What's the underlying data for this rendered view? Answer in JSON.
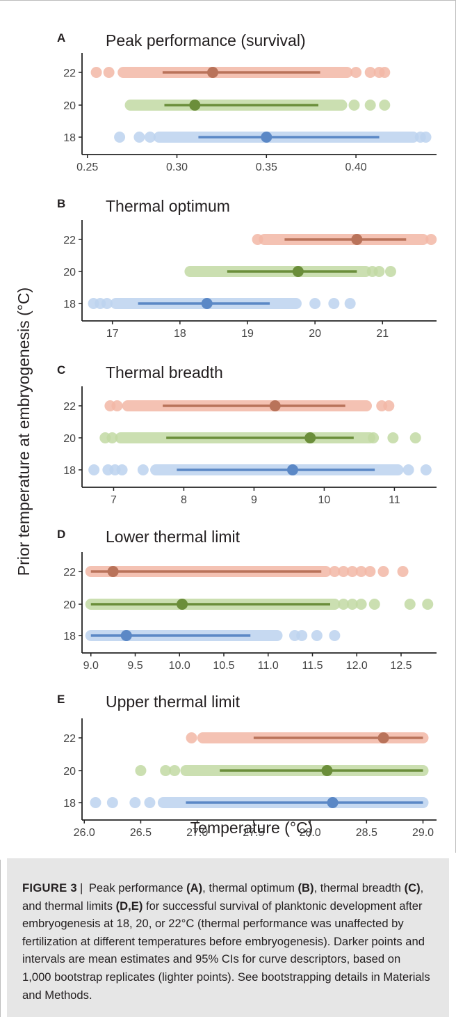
{
  "figure": {
    "ylabel": "Prior temperature at embryogenesis (°C)",
    "xlabel_bottom": "Temperature (°C)",
    "colors": {
      "t22": "#b9735a",
      "t22_light": "#f2b7a6",
      "t20": "#6b8e3a",
      "t20_light": "#c2d9a3",
      "t18": "#5b88c6",
      "t18_light": "#bcd2ee"
    }
  },
  "chart_data": [
    {
      "panel": "A",
      "type": "scatter",
      "title": "Peak performance (survival)",
      "xlim": [
        0.247,
        0.445
      ],
      "xticks": [
        0.25,
        0.3,
        0.35,
        0.4
      ],
      "xtick_labels": [
        "0.25",
        "0.30",
        "0.35",
        "0.40"
      ],
      "categories": [
        "22",
        "20",
        "18"
      ],
      "series": [
        {
          "category": "22",
          "mean": 0.32,
          "ci": [
            0.292,
            0.38
          ],
          "range": [
            0.27,
            0.395
          ],
          "outliers": [
            0.255,
            0.262,
            0.4,
            0.408,
            0.413,
            0.416
          ]
        },
        {
          "category": "20",
          "mean": 0.31,
          "ci": [
            0.293,
            0.379
          ],
          "range": [
            0.274,
            0.392
          ],
          "outliers": [
            0.399,
            0.408,
            0.416
          ]
        },
        {
          "category": "18",
          "mean": 0.35,
          "ci": [
            0.312,
            0.413
          ],
          "range": [
            0.29,
            0.432
          ],
          "outliers": [
            0.268,
            0.279,
            0.285,
            0.436,
            0.439
          ]
        }
      ]
    },
    {
      "panel": "B",
      "type": "scatter",
      "title": "Thermal optimum",
      "xlim": [
        16.55,
        21.8
      ],
      "xticks": [
        17,
        18,
        19,
        20,
        21
      ],
      "xtick_labels": [
        "17",
        "18",
        "19",
        "20",
        "21"
      ],
      "categories": [
        "22",
        "20",
        "18"
      ],
      "series": [
        {
          "category": "22",
          "mean": 20.62,
          "ci": [
            19.55,
            21.35
          ],
          "range": [
            19.25,
            21.6
          ],
          "outliers": [
            19.15,
            21.72
          ]
        },
        {
          "category": "20",
          "mean": 19.75,
          "ci": [
            18.7,
            20.62
          ],
          "range": [
            18.15,
            20.75
          ],
          "outliers": [
            20.85,
            20.95,
            21.12
          ]
        },
        {
          "category": "18",
          "mean": 18.4,
          "ci": [
            17.38,
            19.33
          ],
          "range": [
            17.05,
            19.72
          ],
          "outliers": [
            16.72,
            16.82,
            16.92,
            20.0,
            20.28,
            20.52
          ]
        }
      ]
    },
    {
      "panel": "C",
      "type": "scatter",
      "title": "Thermal breadth",
      "xlim": [
        6.55,
        11.6
      ],
      "xticks": [
        7,
        8,
        9,
        10,
        11
      ],
      "xtick_labels": [
        "7",
        "8",
        "9",
        "10",
        "11"
      ],
      "categories": [
        "22",
        "20",
        "18"
      ],
      "series": [
        {
          "category": "22",
          "mean": 9.3,
          "ci": [
            7.7,
            10.3
          ],
          "range": [
            7.2,
            10.6
          ],
          "outliers": [
            6.95,
            7.05,
            10.82,
            10.92
          ]
        },
        {
          "category": "20",
          "mean": 9.8,
          "ci": [
            7.75,
            10.42
          ],
          "range": [
            7.1,
            10.65
          ],
          "outliers": [
            6.88,
            6.98,
            10.7,
            10.98,
            11.3
          ]
        },
        {
          "category": "18",
          "mean": 9.55,
          "ci": [
            7.9,
            10.72
          ],
          "range": [
            7.6,
            11.05
          ],
          "outliers": [
            6.72,
            6.92,
            7.02,
            7.12,
            7.42,
            11.2,
            11.45
          ]
        }
      ]
    },
    {
      "panel": "D",
      "type": "scatter",
      "title": "Lower thermal limit",
      "xlim": [
        8.9,
        12.9
      ],
      "xticks": [
        9.0,
        9.5,
        10.0,
        10.5,
        11.0,
        11.5,
        12.0,
        12.5
      ],
      "xtick_labels": [
        "9.0",
        "9.5",
        "10.0",
        "10.5",
        "11.0",
        "11.5",
        "12.0",
        "12.5"
      ],
      "categories": [
        "22",
        "20",
        "18"
      ],
      "series": [
        {
          "category": "22",
          "mean": 9.25,
          "ci": [
            9.0,
            11.6
          ],
          "range": [
            9.0,
            11.65
          ],
          "outliers": [
            11.75,
            11.85,
            11.95,
            12.05,
            12.15,
            12.3,
            12.52
          ]
        },
        {
          "category": "20",
          "mean": 10.03,
          "ci": [
            9.0,
            11.7
          ],
          "range": [
            9.0,
            11.75
          ],
          "outliers": [
            11.85,
            11.95,
            12.05,
            12.2,
            12.6,
            12.8
          ]
        },
        {
          "category": "18",
          "mean": 9.4,
          "ci": [
            9.0,
            10.8
          ],
          "range": [
            9.0,
            11.1
          ],
          "outliers": [
            11.3,
            11.38,
            11.55,
            11.75
          ]
        }
      ]
    },
    {
      "panel": "E",
      "type": "scatter",
      "title": "Upper thermal limit",
      "xlim": [
        25.98,
        29.12
      ],
      "xticks": [
        26.0,
        26.5,
        27.0,
        27.5,
        28.0,
        28.5,
        29.0
      ],
      "xtick_labels": [
        "26.0",
        "26.5",
        "27.0",
        "27.5",
        "28.0",
        "28.5",
        "29.0"
      ],
      "categories": [
        "22",
        "20",
        "18"
      ],
      "series": [
        {
          "category": "22",
          "mean": 28.65,
          "ci": [
            27.5,
            29.0
          ],
          "range": [
            27.05,
            29.0
          ],
          "outliers": [
            26.95
          ]
        },
        {
          "category": "20",
          "mean": 28.15,
          "ci": [
            27.2,
            29.0
          ],
          "range": [
            26.9,
            29.0
          ],
          "outliers": [
            26.5,
            26.72,
            26.8
          ]
        },
        {
          "category": "18",
          "mean": 28.2,
          "ci": [
            26.9,
            29.0
          ],
          "range": [
            26.7,
            29.0
          ],
          "outliers": [
            26.1,
            26.25,
            26.45,
            26.58
          ]
        }
      ]
    }
  ],
  "caption": {
    "label": "FIGURE 3",
    "separator": "|",
    "t1": " Peak performance ",
    "b1": "(A)",
    "t2": ", thermal optimum ",
    "b2": "(B)",
    "t3": ", thermal breadth ",
    "b3": "(C)",
    "t4": ", and thermal limits ",
    "b4": "(D,E)",
    "t5": " for successful survival of planktonic development after embryogenesis at 18, 20, or 22°C (thermal performance was unaffected by fertilization at different temperatures before embryogenesis). Darker points and intervals are mean estimates and 95% CIs for curve descriptors, based on 1,000 bootstrap replicates (lighter points). See bootstrapping details in Materials and Methods."
  }
}
